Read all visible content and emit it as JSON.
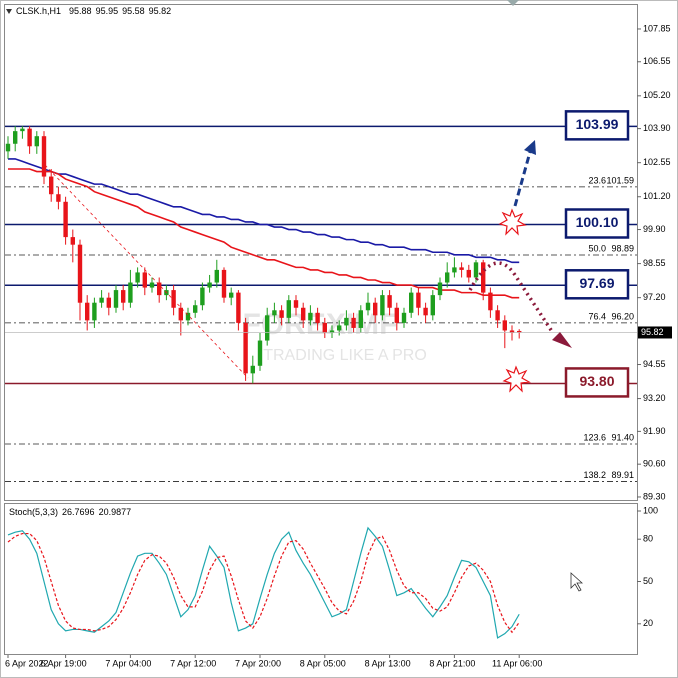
{
  "chart_data": [
    {
      "type": "candlestick",
      "title": "CLSK.h,H1",
      "categories": [
        "6 Apr 2022",
        null,
        null,
        null,
        null,
        null,
        null,
        null,
        "6 Apr 19:00",
        null,
        null,
        null,
        null,
        null,
        null,
        null,
        null,
        "7 Apr 04:00",
        null,
        null,
        null,
        null,
        null,
        null,
        null,
        null,
        "7 Apr 12:00",
        null,
        null,
        null,
        null,
        null,
        null,
        null,
        null,
        "7 Apr 20:00",
        null,
        null,
        null,
        null,
        null,
        null,
        null,
        null,
        "8 Apr 05:00",
        null,
        null,
        null,
        null,
        null,
        null,
        null,
        null,
        "8 Apr 13:00",
        null,
        null,
        null,
        null,
        null,
        null,
        null,
        null,
        "8 Apr 21:00",
        null,
        null,
        null,
        null,
        null,
        null,
        null,
        null,
        "11 Apr 06:00"
      ],
      "open": [
        103.0,
        103.3,
        103.8,
        103.9,
        103.2,
        103.6,
        102.0,
        101.3,
        101.0,
        99.6,
        99.3,
        97.0,
        96.3,
        97.0,
        97.2,
        96.8,
        97.5,
        97.0,
        97.8,
        98.2,
        97.6,
        97.8,
        97.3,
        97.5,
        96.8,
        96.3,
        96.6,
        96.9,
        97.6,
        97.8,
        98.3,
        97.2,
        97.4,
        96.2,
        94.2,
        94.5,
        95.5,
        96.5,
        96.7,
        96.4,
        97.1,
        96.8,
        96.3,
        96.6,
        96.2,
        95.8,
        95.9,
        96.1,
        96.4,
        96.0,
        96.7,
        97.0,
        96.5,
        97.3,
        96.8,
        96.2,
        96.6,
        97.4,
        96.8,
        96.5,
        97.3,
        97.8,
        98.2,
        98.4,
        98.3,
        98.0,
        98.6,
        97.4,
        96.7,
        96.3,
        95.9,
        95.88
      ],
      "high": [
        103.6,
        104.0,
        104.0,
        104.0,
        103.8,
        103.8,
        102.3,
        101.6,
        101.2,
        99.9,
        99.5,
        97.3,
        97.2,
        97.5,
        97.4,
        97.7,
        97.7,
        98.3,
        98.4,
        98.4,
        98.0,
        98.0,
        97.7,
        97.7,
        97.0,
        96.8,
        97.1,
        97.8,
        98.1,
        98.7,
        98.4,
        97.6,
        97.5,
        96.4,
        94.9,
        95.8,
        96.8,
        97.0,
        96.9,
        97.3,
        97.3,
        97.0,
        96.9,
        96.8,
        96.4,
        96.1,
        96.3,
        96.7,
        96.6,
        96.9,
        97.4,
        97.2,
        97.5,
        97.5,
        97.0,
        96.8,
        97.6,
        97.6,
        97.0,
        97.5,
        98.0,
        98.6,
        98.8,
        98.6,
        98.5,
        98.7,
        98.7,
        97.6,
        96.9,
        96.5,
        96.1,
        95.95
      ],
      "low": [
        102.7,
        103.0,
        103.5,
        102.9,
        102.9,
        101.7,
        101.0,
        100.7,
        99.3,
        98.6,
        96.3,
        95.9,
        96.0,
        96.8,
        96.5,
        96.6,
        96.7,
        96.8,
        97.6,
        97.3,
        97.4,
        97.0,
        97.1,
        96.5,
        95.7,
        96.1,
        96.4,
        96.7,
        97.4,
        97.6,
        97.0,
        96.9,
        95.9,
        93.9,
        93.8,
        94.3,
        95.3,
        96.2,
        96.1,
        96.2,
        96.5,
        96.0,
        96.1,
        95.9,
        95.6,
        95.6,
        95.7,
        95.9,
        95.8,
        95.8,
        96.5,
        96.2,
        96.3,
        96.5,
        95.9,
        96.0,
        96.4,
        96.5,
        96.2,
        96.3,
        97.1,
        97.6,
        98.0,
        98.0,
        97.8,
        97.8,
        97.1,
        96.4,
        96.0,
        95.2,
        95.5,
        95.58
      ],
      "close": [
        103.3,
        103.8,
        103.9,
        103.2,
        103.6,
        102.0,
        101.3,
        101.0,
        99.6,
        99.3,
        97.0,
        96.3,
        97.0,
        97.2,
        96.8,
        97.5,
        97.0,
        97.8,
        98.2,
        97.6,
        97.8,
        97.3,
        97.5,
        96.8,
        96.3,
        96.6,
        96.9,
        97.6,
        97.8,
        98.3,
        97.2,
        97.4,
        96.2,
        94.2,
        94.5,
        95.5,
        96.5,
        96.7,
        96.4,
        97.1,
        96.8,
        96.3,
        96.6,
        96.2,
        95.8,
        95.9,
        96.1,
        96.4,
        96.0,
        96.7,
        97.0,
        96.5,
        97.3,
        96.8,
        96.2,
        96.6,
        97.4,
        96.8,
        96.5,
        97.3,
        97.8,
        98.2,
        98.4,
        98.3,
        98.0,
        98.6,
        97.4,
        96.7,
        96.3,
        95.9,
        95.8,
        95.82
      ],
      "up_color": "#1e9e1e",
      "down_color": "#e8141a",
      "moving_averages": [
        {
          "color": "#1a1aa6",
          "values": [
            102.7,
            102.7,
            102.6,
            102.5,
            102.4,
            102.3,
            102.2,
            102.1,
            102.1,
            102.0,
            101.9,
            101.8,
            101.7,
            101.7,
            101.6,
            101.5,
            101.4,
            101.3,
            101.3,
            101.2,
            101.1,
            101.0,
            100.9,
            100.8,
            100.8,
            100.7,
            100.6,
            100.5,
            100.5,
            100.4,
            100.4,
            100.3,
            100.3,
            100.2,
            100.2,
            100.1,
            100.1,
            100.0,
            100.0,
            99.9,
            99.9,
            99.8,
            99.8,
            99.7,
            99.7,
            99.6,
            99.6,
            99.5,
            99.5,
            99.4,
            99.4,
            99.3,
            99.3,
            99.2,
            99.2,
            99.2,
            99.1,
            99.1,
            99.1,
            99.0,
            99.0,
            99.0,
            98.9,
            98.9,
            98.9,
            98.8,
            98.8,
            98.8,
            98.7,
            98.7,
            98.6,
            98.6
          ]
        },
        {
          "color": "#e8141a",
          "values": [
            102.3,
            102.3,
            102.3,
            102.3,
            102.2,
            102.2,
            102.2,
            102.1,
            101.9,
            101.8,
            101.7,
            101.6,
            101.4,
            101.3,
            101.2,
            101.1,
            101.0,
            100.9,
            100.8,
            100.6,
            100.5,
            100.4,
            100.3,
            100.2,
            100.0,
            99.9,
            99.8,
            99.7,
            99.6,
            99.5,
            99.4,
            99.2,
            99.1,
            99.0,
            98.9,
            98.8,
            98.7,
            98.7,
            98.6,
            98.5,
            98.4,
            98.4,
            98.3,
            98.3,
            98.2,
            98.2,
            98.1,
            98.1,
            98.0,
            98.0,
            97.9,
            97.9,
            97.8,
            97.8,
            97.7,
            97.7,
            97.7,
            97.6,
            97.6,
            97.6,
            97.5,
            97.5,
            97.5,
            97.4,
            97.4,
            97.4,
            97.3,
            97.3,
            97.3,
            97.3,
            97.2,
            97.2
          ]
        }
      ],
      "ylim": [
        89.18,
        108.8
      ],
      "yticks": [
        107.85,
        106.55,
        {
          "value": 105.2,
          "label": "105.20"
        },
        {
          "value": 103.9,
          "label": "103.90"
        },
        102.55,
        {
          "value": 101.2,
          "label": "101.20"
        },
        {
          "value": 99.9,
          "label": "99.90"
        },
        98.55,
        {
          "value": 97.2,
          "label": "97.20"
        },
        94.55,
        {
          "value": 93.2,
          "label": "93.20"
        },
        {
          "value": 91.9,
          "label": "91.90"
        },
        {
          "value": 90.6,
          "label": "90.60"
        },
        {
          "value": 89.3,
          "label": "89.30"
        }
      ],
      "levels": [
        {
          "value": 103.99,
          "label": "103.99",
          "color": "#0c1a6e"
        },
        {
          "value": 100.1,
          "label": "100.10",
          "color": "#0c1a6e"
        },
        {
          "value": 97.69,
          "label": "97.69",
          "color": "#0c1a6e"
        },
        {
          "value": 93.8,
          "label": "93.80",
          "color": "#8b1a2b"
        }
      ],
      "fibs": [
        {
          "ratio": "23.6",
          "value": 101.59,
          "value_label": "101.59"
        },
        {
          "ratio": "50.0",
          "value": 98.89,
          "value_label": "98.89"
        },
        {
          "ratio": "76.4",
          "value": 96.2,
          "value_label": "96.20"
        },
        {
          "ratio": "123.6",
          "value": 91.4,
          "value_label": "91.40"
        },
        {
          "ratio": "138.2",
          "value": 89.91,
          "value_label": "89.91"
        }
      ],
      "watermark": [
        "FOREXIMF",
        "TRADING LIKE A PRO"
      ],
      "grid": false
    },
    {
      "type": "line",
      "title": "Stoch(5,3,3)",
      "series": [
        {
          "color": "#20a8b0",
          "dashed": false,
          "values": [
            83,
            85,
            86,
            80,
            70,
            50,
            30,
            20,
            15,
            16,
            16,
            15,
            14,
            18,
            22,
            28,
            42,
            56,
            68,
            70,
            70,
            63,
            55,
            40,
            25,
            30,
            40,
            58,
            75,
            68,
            60,
            35,
            15,
            17,
            20,
            38,
            55,
            70,
            80,
            85,
            72,
            63,
            55,
            45,
            35,
            25,
            27,
            30,
            50,
            70,
            88,
            82,
            75,
            58,
            40,
            42,
            45,
            38,
            31,
            25,
            32,
            40,
            53,
            65,
            64,
            60,
            50,
            40,
            10,
            13,
            18,
            26.7696
          ]
        },
        {
          "color": "#e8141a",
          "dashed": true,
          "values": [
            78,
            82,
            84,
            84,
            79,
            67,
            50,
            33,
            22,
            17,
            16,
            16,
            15,
            16,
            18,
            23,
            31,
            42,
            55,
            65,
            69,
            68,
            63,
            53,
            40,
            32,
            32,
            43,
            58,
            67,
            68,
            54,
            37,
            22,
            17,
            25,
            38,
            54,
            68,
            78,
            79,
            73,
            63,
            54,
            45,
            35,
            29,
            27,
            36,
            50,
            69,
            80,
            82,
            72,
            58,
            47,
            42,
            42,
            38,
            31,
            29,
            32,
            42,
            53,
            61,
            63,
            58,
            50,
            33,
            21,
            14,
            20.9877
          ]
        }
      ],
      "ylim": [
        0,
        100
      ],
      "yticks": [
        100,
        80,
        50,
        20
      ]
    }
  ]
}
